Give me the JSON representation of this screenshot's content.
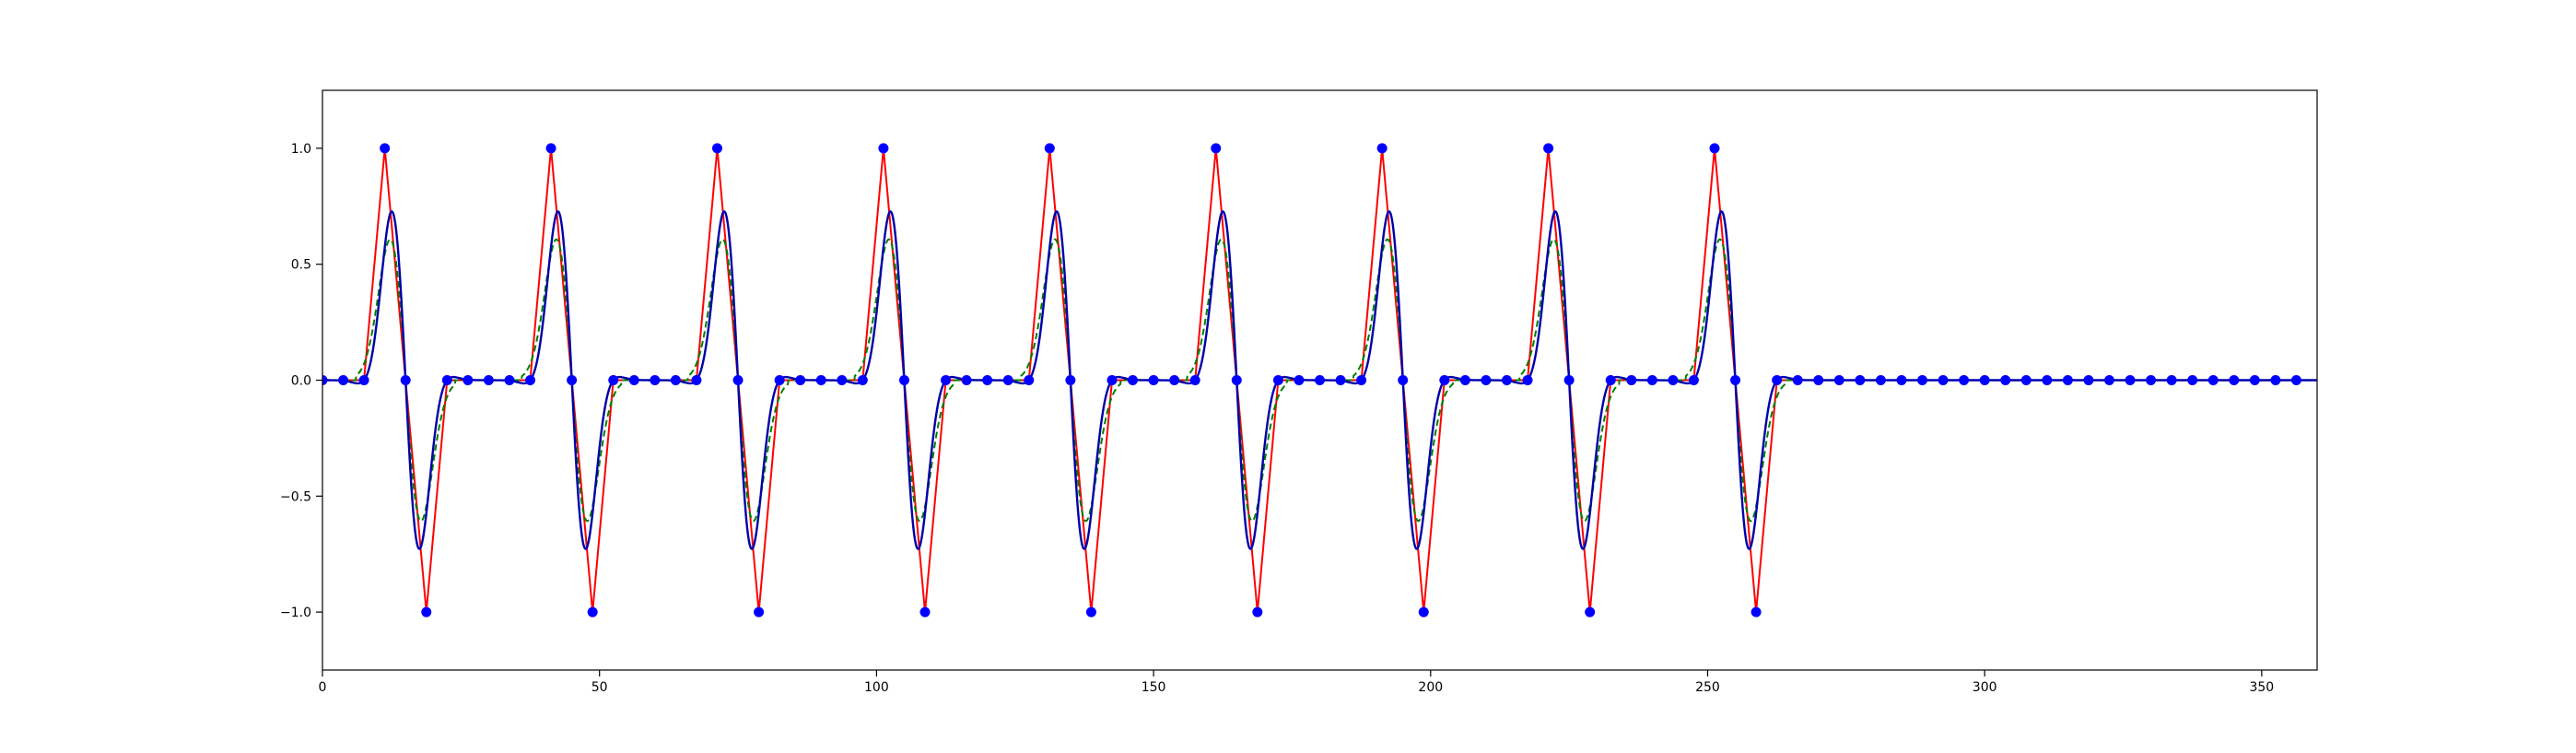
{
  "chart_data": {
    "type": "line",
    "title": "",
    "xlabel": "",
    "ylabel": "",
    "xlim": [
      0,
      360
    ],
    "ylim": [
      -1.25,
      1.25
    ],
    "grid": false,
    "legend": "none",
    "x_ticks": [
      0,
      50,
      100,
      150,
      200,
      250,
      300,
      350
    ],
    "y_ticks": [
      -1.0,
      -0.5,
      0.0,
      0.5,
      1.0
    ],
    "x_tick_labels": [
      "0",
      "50",
      "100",
      "150",
      "200",
      "250",
      "300",
      "350"
    ],
    "y_tick_labels": [
      "−1.0",
      "−0.5",
      "0.0",
      "0.5",
      "1.0"
    ],
    "pulse_starts": [
      0,
      30,
      60,
      90,
      120,
      150,
      180,
      210,
      240
    ],
    "sample_spacing": 3.75,
    "sample_range": [
      0,
      356.25
    ],
    "series": [
      {
        "style": "markers",
        "color": "#0000ff",
        "description": "sampled points: +1 peak at start+11.25, -1 trough at start+18.75, 0 elsewhere",
        "peak_offset": 11.25,
        "trough_offset": 18.75
      },
      {
        "style": "solid",
        "color": "#ff0000",
        "description": "linear interpolation through samples"
      },
      {
        "style": "dashed",
        "color": "#008000",
        "description": "ideal dipole waveform, peak at start+11.25, trough at start+18.75"
      },
      {
        "style": "solid",
        "color": "#0000aa",
        "description": "smooth reconstructed waveform with overshoot, peak at start+11.25, trough at start+18.75"
      }
    ]
  }
}
